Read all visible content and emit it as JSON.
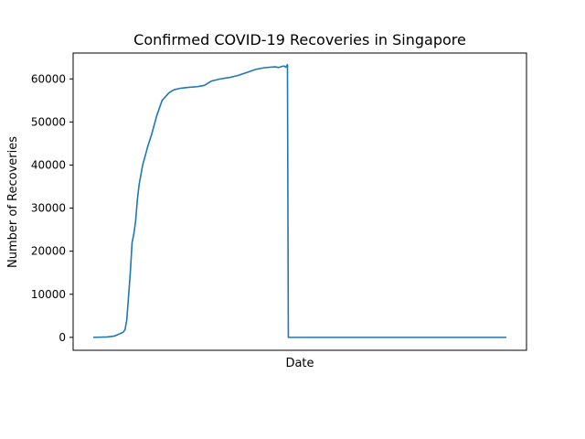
{
  "chart_data": {
    "type": "line",
    "title": "Confirmed COVID-19 Recoveries in Singapore",
    "xlabel": "Date",
    "ylabel": "Number of Recoveries",
    "ylim": [
      -3000,
      66000
    ],
    "yticks": [
      0,
      10000,
      20000,
      30000,
      40000,
      50000,
      60000
    ],
    "ytick_labels": [
      "0",
      "10000",
      "20000",
      "30000",
      "40000",
      "50000",
      "60000"
    ],
    "xticks_shown": false,
    "grid": false,
    "series": [
      {
        "color": "#1f77b4",
        "x": [
          0,
          8,
          12,
          16,
          17,
          18,
          19,
          20,
          21,
          22,
          23,
          24,
          25,
          26,
          28,
          29,
          31,
          33,
          36,
          39,
          43,
          45,
          46,
          47,
          48,
          49,
          51,
          53,
          56,
          59,
          61,
          63,
          67,
          72,
          77,
          82,
          87,
          92,
          97,
          103,
          105,
          107,
          108,
          109,
          110,
          110.5,
          111,
          112,
          115,
          120,
          140,
          160,
          180,
          200,
          220,
          234
        ],
        "values": [
          0,
          100,
          300,
          1000,
          1200,
          1800,
          4000,
          9500,
          15000,
          22000,
          24000,
          27000,
          32000,
          35500,
          40000,
          41500,
          44500,
          47000,
          51500,
          55000,
          56800,
          57300,
          57500,
          57600,
          57700,
          57800,
          57900,
          58000,
          58100,
          58200,
          58350,
          58500,
          59500,
          60000,
          60300,
          60800,
          61500,
          62200,
          62600,
          62800,
          62650,
          62900,
          63000,
          62700,
          63300,
          0,
          0,
          0,
          0,
          0,
          0,
          0,
          0,
          0,
          0,
          0
        ]
      }
    ]
  }
}
